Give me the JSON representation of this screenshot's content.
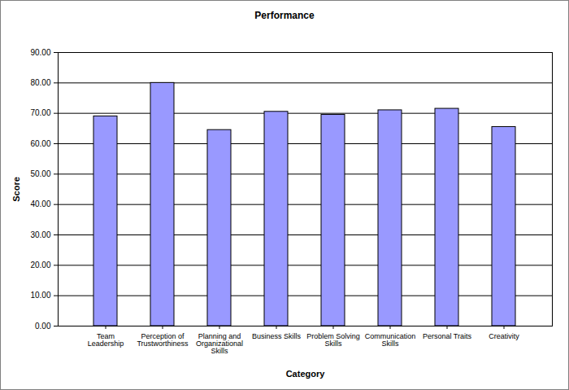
{
  "chart_data": {
    "type": "bar",
    "title": "Performance",
    "x_label": "Category",
    "y_label": "Score",
    "categories": [
      "Team Leadership",
      "Perception of Trustworthiness",
      "Planning and Organizational Skills",
      "Business Skills",
      "Problem Solving Skills",
      "Communication Skills",
      "Personal Traits",
      "Creativity"
    ],
    "values": [
      69,
      80,
      64.5,
      70.5,
      69.5,
      71,
      71.5,
      65.5
    ],
    "color": "#9999ff",
    "ylim": [
      0,
      90
    ],
    "yticks": [
      {
        "value": 0,
        "label": "0.00"
      },
      {
        "value": 10,
        "label": "10.00"
      },
      {
        "value": 20,
        "label": "20.00"
      },
      {
        "value": 30,
        "label": "30.00"
      },
      {
        "value": 40,
        "label": "40.00"
      },
      {
        "value": 50,
        "label": "50.00"
      },
      {
        "value": 60,
        "label": "60.00"
      },
      {
        "value": 70,
        "label": "70.00"
      },
      {
        "value": 80,
        "label": "80.00"
      },
      {
        "value": 90,
        "label": "90.00"
      }
    ],
    "grid": true
  }
}
